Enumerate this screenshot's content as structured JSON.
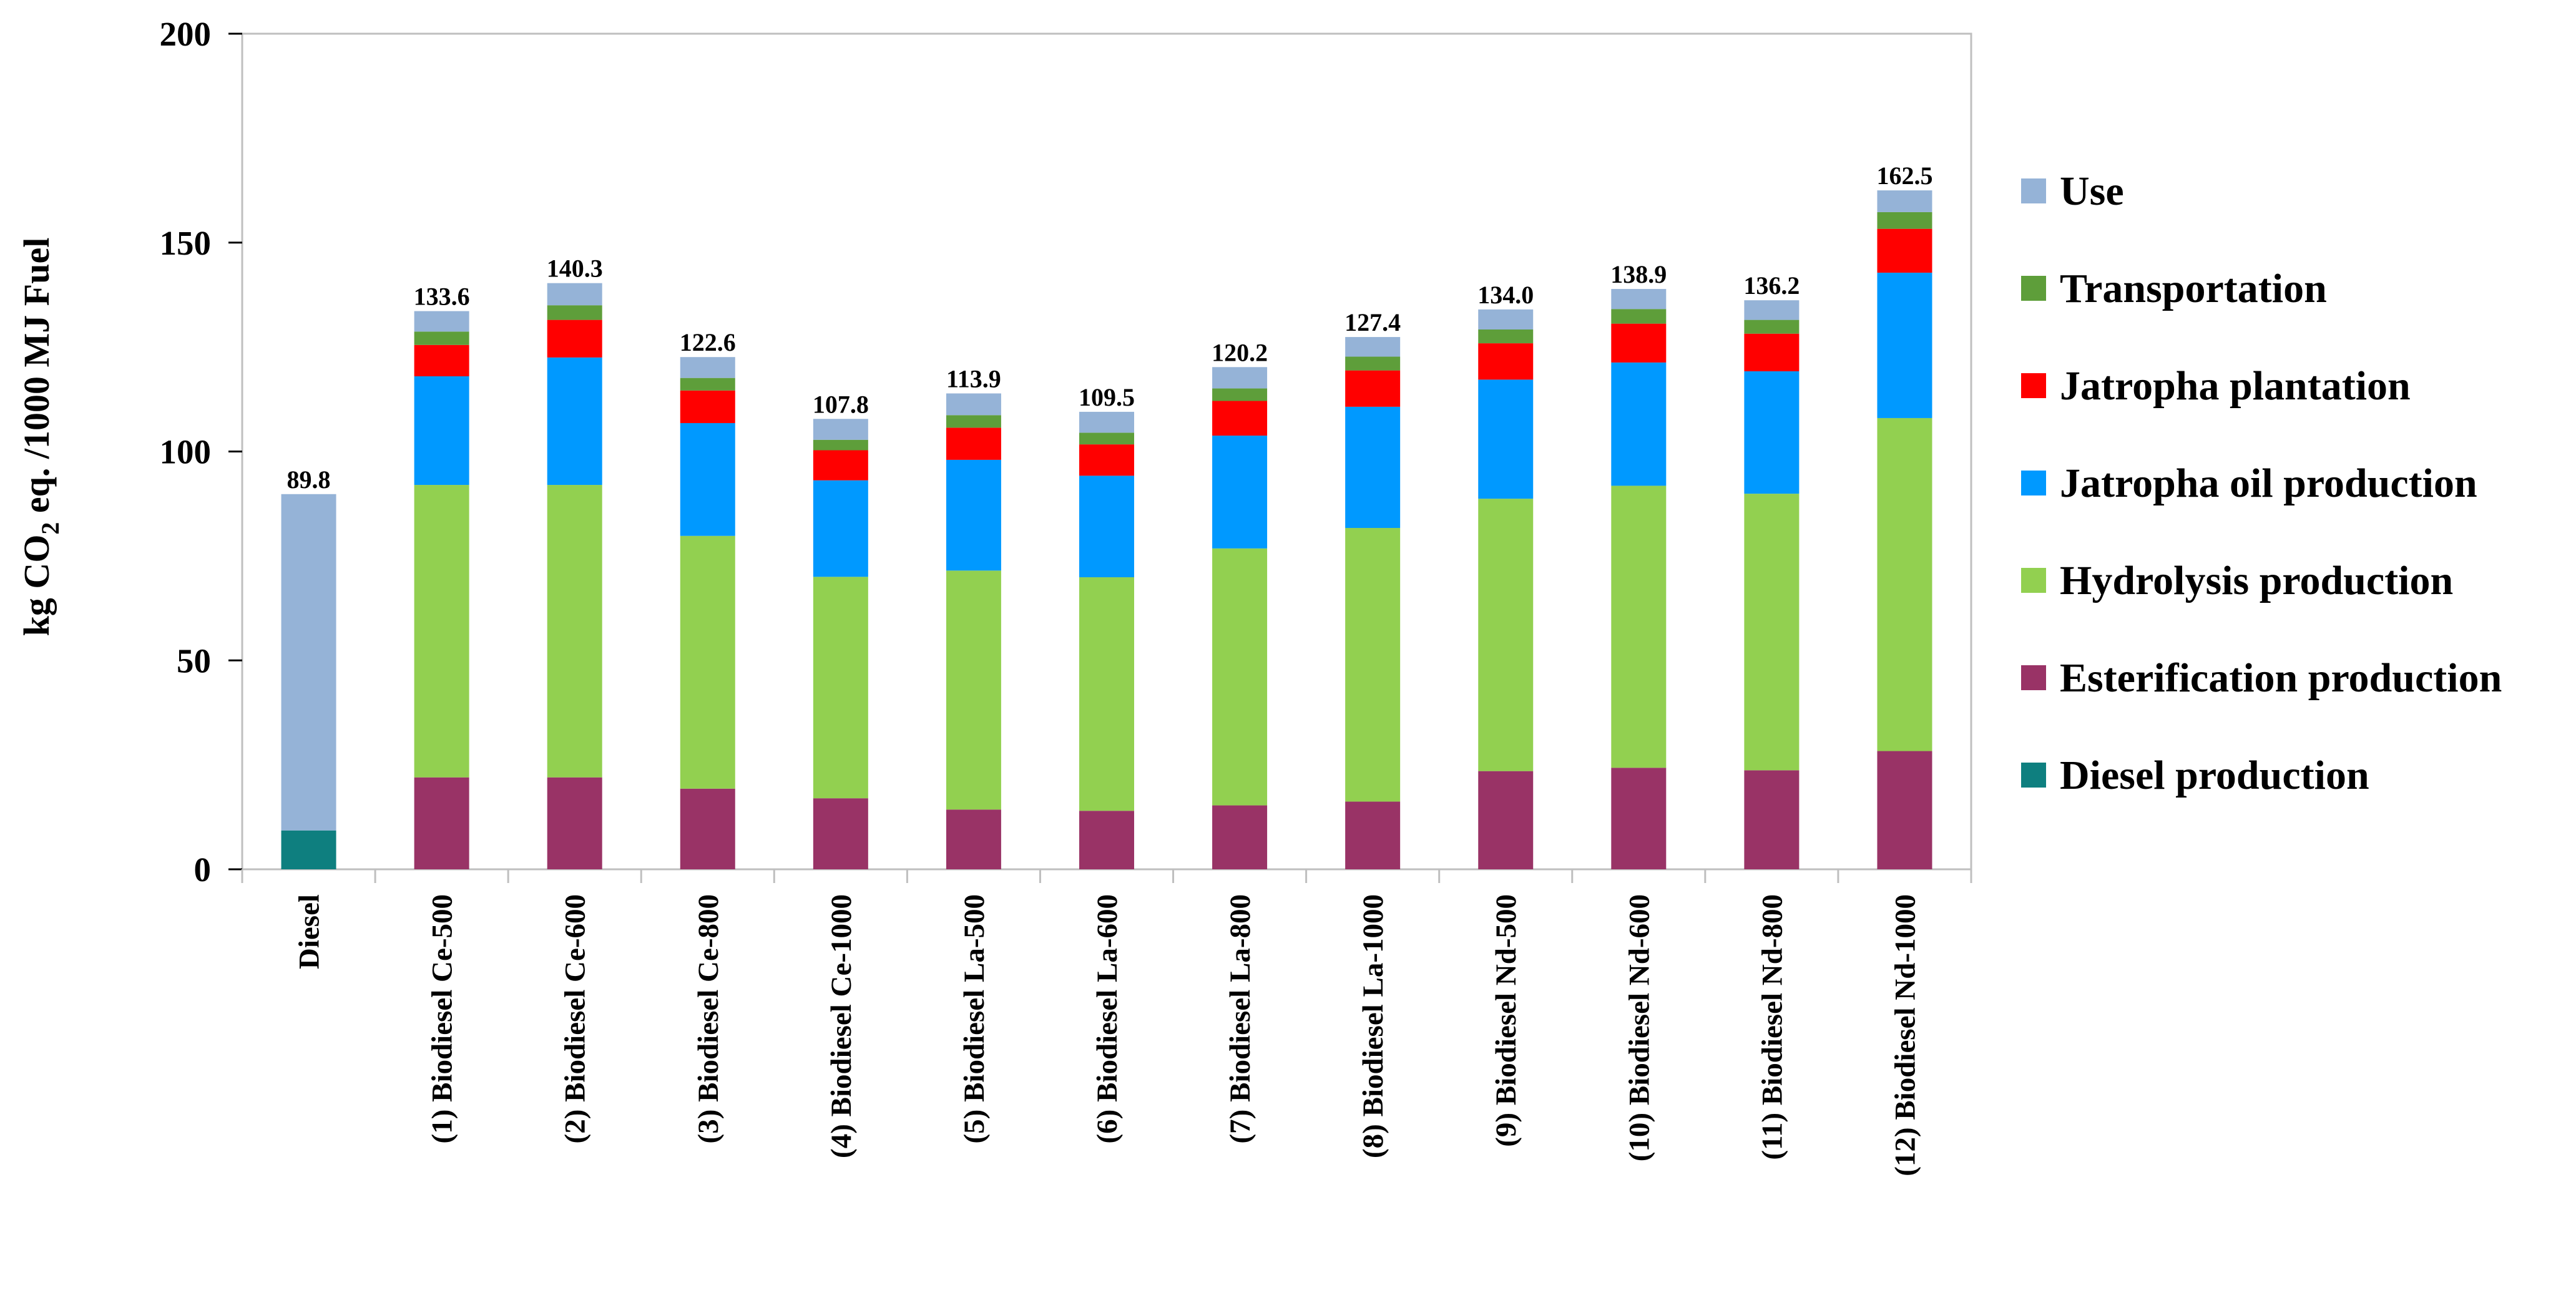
{
  "chart_data": {
    "type": "bar",
    "stacked": true,
    "title": "",
    "xlabel": "",
    "ylabel": {
      "prefix": "kg CO",
      "subscript": "2",
      "suffix": " eq. /1000 MJ Fuel"
    },
    "ylim": [
      0,
      200
    ],
    "yticks": [
      0,
      50,
      100,
      150,
      200
    ],
    "categories": [
      "Diesel",
      "(1) Biodiesel Ce-500",
      "(2) Biodiesel Ce-600",
      "(3) Biodiesel Ce-800",
      "(4) Biodiesel Ce-1000",
      "(5) Biodiesel La-500",
      "(6) Biodiesel La-600",
      "(7) Biodiesel La-800",
      "(8) Biodiesel La-1000",
      "(9) Biodiesel Nd-500",
      "(10) Biodiesel Nd-600",
      "(11) Biodiesel Nd-800",
      "(12) Biodiesel Nd-1000"
    ],
    "series": [
      {
        "name": "Diesel production",
        "color": "#0E7F7F",
        "values": [
          9.3,
          0,
          0,
          0,
          0,
          0,
          0,
          0,
          0,
          0,
          0,
          0,
          0
        ]
      },
      {
        "name": "Esterification production",
        "color": "#993366",
        "values": [
          0,
          22,
          22,
          19.3,
          17,
          14.3,
          14,
          15.3,
          16.2,
          23.5,
          24.3,
          23.7,
          28.3
        ]
      },
      {
        "name": "Hydrolysis production",
        "color": "#92D050",
        "values": [
          0,
          70,
          70,
          60.5,
          53,
          57.2,
          55.9,
          61.5,
          65.5,
          65.2,
          67.5,
          66.2,
          79.7
        ]
      },
      {
        "name": "Jatropha oil production",
        "color": "#0099FF",
        "values": [
          0,
          26,
          30.5,
          27,
          23.1,
          26.5,
          24.3,
          27,
          29,
          28.5,
          29.5,
          29.3,
          34.8
        ]
      },
      {
        "name": "Jatropha plantation",
        "color": "#FF0000",
        "values": [
          0,
          7.5,
          9,
          7.8,
          7.2,
          7.7,
          7.5,
          8.3,
          8.7,
          8.7,
          9.3,
          9,
          10.5
        ]
      },
      {
        "name": "Transportation",
        "color": "#5E9E3A",
        "values": [
          0,
          3.2,
          3.5,
          3,
          2.5,
          3,
          2.8,
          3,
          3.3,
          3.3,
          3.5,
          3.3,
          4
        ]
      },
      {
        "name": "Use",
        "color": "#95B3D7",
        "values": [
          80.5,
          4.9,
          5.3,
          5,
          5,
          5.2,
          5,
          5.1,
          4.7,
          4.8,
          4.8,
          4.7,
          5.2
        ]
      }
    ],
    "totals": [
      89.8,
      133.6,
      140.3,
      122.6,
      107.8,
      113.9,
      109.5,
      120.2,
      127.4,
      134.0,
      138.9,
      136.2,
      162.5
    ],
    "total_labels": [
      "89.8",
      "133.6",
      "140.3",
      "122.6",
      "107.8",
      "113.9",
      "109.5",
      "120.2",
      "127.4",
      "134.0",
      "138.9",
      "136.2",
      "162.5"
    ],
    "legend": {
      "placement": "right",
      "entries": [
        "Use",
        "Transportation",
        "Jatropha plantation",
        "Jatropha oil production",
        "Hydrolysis production",
        "Esterification production",
        "Diesel production"
      ]
    },
    "grid": false
  }
}
